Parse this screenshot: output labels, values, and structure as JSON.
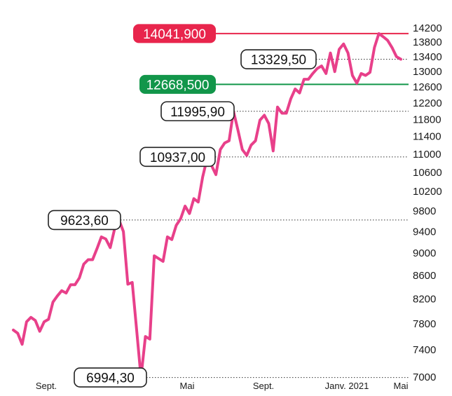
{
  "chart_data": {
    "type": "line",
    "title": "",
    "xlabel": "",
    "ylabel": "",
    "ylim": [
      7000,
      14200
    ],
    "y_scale": "log",
    "y_ticks": [
      7000,
      7400,
      7800,
      8200,
      8600,
      9000,
      9400,
      9800,
      10200,
      10600,
      11000,
      11400,
      11800,
      12200,
      12600,
      13000,
      13400,
      13800,
      14200
    ],
    "x_tick_labels": [
      "Sept.",
      "Mai",
      "Sept.",
      "Janv. 2021",
      "Mai"
    ],
    "grid": false,
    "colors": {
      "line": "#e8408a",
      "resistance": "#e8254c",
      "support": "#12964a",
      "dotted": "#333333"
    },
    "series": [
      {
        "values": [
          7700,
          7650,
          7480,
          7830,
          7900,
          7850,
          7680,
          7830,
          7870,
          8150,
          8250,
          8340,
          8300,
          8440,
          8440,
          8560,
          8800,
          8880,
          8880,
          9080,
          9300,
          9260,
          9100,
          9450,
          9623.6,
          9400,
          8450,
          8480,
          7700,
          6994.3,
          7600,
          7560,
          8950,
          8900,
          8850,
          9300,
          9250,
          9520,
          9650,
          9900,
          9750,
          10050,
          9980,
          10500,
          10900,
          10750,
          10550,
          11100,
          11250,
          11300,
          11995.9,
          11550,
          11100,
          10970,
          11200,
          11300,
          11780,
          11900,
          11700,
          11070,
          12100,
          11950,
          11950,
          12300,
          12550,
          12450,
          12800,
          12800,
          12950,
          13080,
          13150,
          12950,
          13500,
          13000,
          13600,
          13750,
          13500,
          12900,
          12700,
          12950,
          12900,
          12980,
          13650,
          14041.9,
          13950,
          13850,
          13650,
          13400,
          13329.5
        ]
      }
    ],
    "levels": [
      {
        "value": 14041.9,
        "label": "14041,900",
        "style": "resistance"
      },
      {
        "value": 12668.5,
        "label": "12668,500",
        "style": "support"
      },
      {
        "value": 13329.5,
        "label": "13329,50",
        "style": "dotted"
      },
      {
        "value": 11995.9,
        "label": "11995,90",
        "style": "dotted"
      },
      {
        "value": 10937.0,
        "label": "10937,00",
        "style": "dotted"
      },
      {
        "value": 9623.6,
        "label": "9623,60",
        "style": "dotted"
      },
      {
        "value": 6994.3,
        "label": "6994,30",
        "style": "dotted"
      }
    ]
  }
}
